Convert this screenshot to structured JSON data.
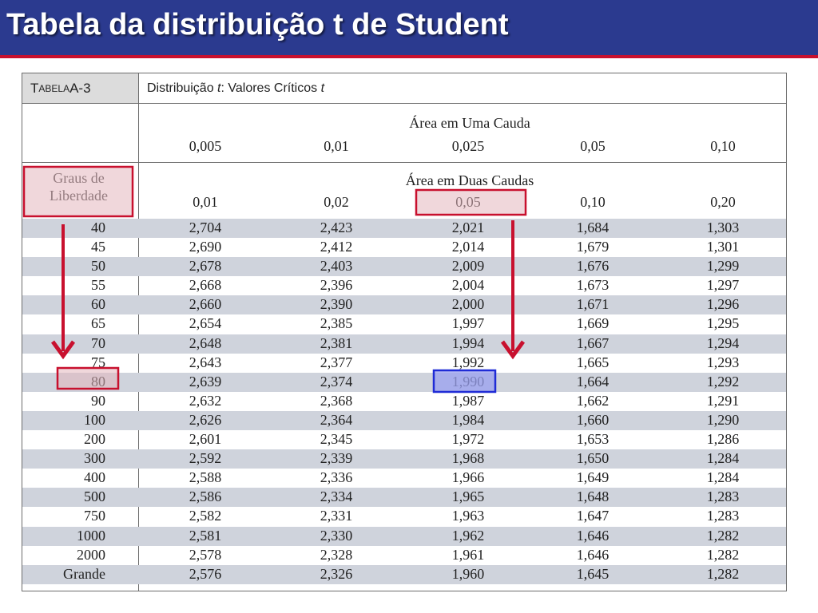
{
  "slide": {
    "title": "Tabela da distribuição t de Student"
  },
  "table": {
    "caption_label_prefix": "T",
    "caption_label_small": "ABELA",
    "caption_label_suffix": " A-3",
    "caption_title_prefix": "Distribuição ",
    "caption_title_t": "t",
    "caption_title_mid": ": Valores Críticos ",
    "caption_title_t2": "t",
    "one_tail_header": "Área em Uma Cauda",
    "one_tail_values": [
      "0,005",
      "0,01",
      "0,025",
      "0,05",
      "0,10"
    ],
    "two_tail_header": "Área em Duas Caudas",
    "two_tail_values": [
      "0,01",
      "0,02",
      "0,05",
      "0,10",
      "0,20"
    ],
    "df_header_line1": "Graus de",
    "df_header_line2": "Liberdade",
    "rows": [
      {
        "df": "40",
        "values": [
          "2,704",
          "2,423",
          "2,021",
          "1,684",
          "1,303"
        ]
      },
      {
        "df": "45",
        "values": [
          "2,690",
          "2,412",
          "2,014",
          "1,679",
          "1,301"
        ]
      },
      {
        "df": "50",
        "values": [
          "2,678",
          "2,403",
          "2,009",
          "1,676",
          "1,299"
        ]
      },
      {
        "df": "55",
        "values": [
          "2,668",
          "2,396",
          "2,004",
          "1,673",
          "1,297"
        ]
      },
      {
        "df": "60",
        "values": [
          "2,660",
          "2,390",
          "2,000",
          "1,671",
          "1,296"
        ]
      },
      {
        "df": "65",
        "values": [
          "2,654",
          "2,385",
          "1,997",
          "1,669",
          "1,295"
        ]
      },
      {
        "df": "70",
        "values": [
          "2,648",
          "2,381",
          "1,994",
          "1,667",
          "1,294"
        ]
      },
      {
        "df": "75",
        "values": [
          "2,643",
          "2,377",
          "1,992",
          "1,665",
          "1,293"
        ]
      },
      {
        "df": "80",
        "values": [
          "2,639",
          "2,374",
          "1,990",
          "1,664",
          "1,292"
        ]
      },
      {
        "df": "90",
        "values": [
          "2,632",
          "2,368",
          "1,987",
          "1,662",
          "1,291"
        ]
      },
      {
        "df": "100",
        "values": [
          "2,626",
          "2,364",
          "1,984",
          "1,660",
          "1,290"
        ]
      },
      {
        "df": "200",
        "values": [
          "2,601",
          "2,345",
          "1,972",
          "1,653",
          "1,286"
        ]
      },
      {
        "df": "300",
        "values": [
          "2,592",
          "2,339",
          "1,968",
          "1,650",
          "1,284"
        ]
      },
      {
        "df": "400",
        "values": [
          "2,588",
          "2,336",
          "1,966",
          "1,649",
          "1,284"
        ]
      },
      {
        "df": "500",
        "values": [
          "2,586",
          "2,334",
          "1,965",
          "1,648",
          "1,283"
        ]
      },
      {
        "df": "750",
        "values": [
          "2,582",
          "2,331",
          "1,963",
          "1,647",
          "1,283"
        ]
      },
      {
        "df": "1000",
        "values": [
          "2,581",
          "2,330",
          "1,962",
          "1,646",
          "1,282"
        ]
      },
      {
        "df": "2000",
        "values": [
          "2,578",
          "2,328",
          "1,961",
          "1,646",
          "1,282"
        ]
      },
      {
        "df": "Grande",
        "values": [
          "2,576",
          "2,326",
          "1,960",
          "1,645",
          "1,282"
        ]
      }
    ]
  },
  "highlights": {
    "df_header_color": "#c8102e",
    "alpha_column_color": "#c8102e",
    "row_80_color": "#c8102e",
    "result_cell_color": "#1f2bd6",
    "result_cell_fill": "#9aa0f0",
    "red_fill": "#e3b7bd"
  }
}
